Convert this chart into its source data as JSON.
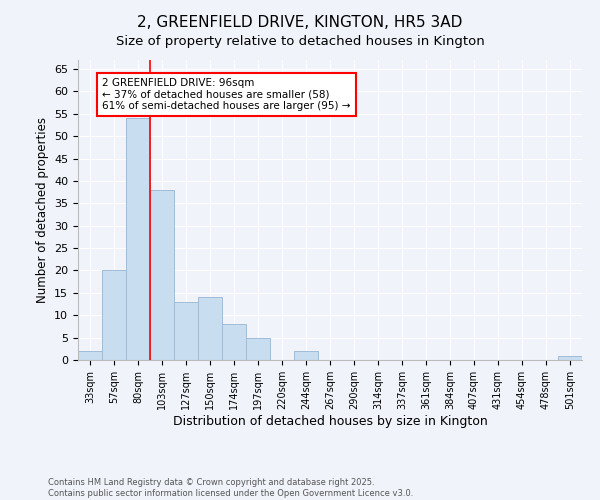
{
  "title": "2, GREENFIELD DRIVE, KINGTON, HR5 3AD",
  "subtitle": "Size of property relative to detached houses in Kington",
  "xlabel": "Distribution of detached houses by size in Kington",
  "ylabel": "Number of detached properties",
  "bar_labels": [
    "33sqm",
    "57sqm",
    "80sqm",
    "103sqm",
    "127sqm",
    "150sqm",
    "174sqm",
    "197sqm",
    "220sqm",
    "244sqm",
    "267sqm",
    "290sqm",
    "314sqm",
    "337sqm",
    "361sqm",
    "384sqm",
    "407sqm",
    "431sqm",
    "454sqm",
    "478sqm",
    "501sqm"
  ],
  "bar_values": [
    2,
    20,
    54,
    38,
    13,
    14,
    8,
    5,
    0,
    2,
    0,
    0,
    0,
    0,
    0,
    0,
    0,
    0,
    0,
    0,
    1
  ],
  "bar_color": "#c8ddf0",
  "bar_edgecolor": "#a0bcd8",
  "ylim": [
    0,
    67
  ],
  "yticks": [
    0,
    5,
    10,
    15,
    20,
    25,
    30,
    35,
    40,
    45,
    50,
    55,
    60,
    65
  ],
  "red_line_x": 2.5,
  "annotation_title": "2 GREENFIELD DRIVE: 96sqm",
  "annotation_line1": "← 37% of detached houses are smaller (58)",
  "annotation_line2": "61% of semi-detached houses are larger (95) →",
  "footer_line1": "Contains HM Land Registry data © Crown copyright and database right 2025.",
  "footer_line2": "Contains public sector information licensed under the Open Government Licence v3.0.",
  "background_color": "#f0f4fa",
  "plot_background": "#f0f4fa",
  "grid_color": "#ffffff",
  "title_fontsize": 11,
  "subtitle_fontsize": 9.5,
  "bar_width": 1.0
}
